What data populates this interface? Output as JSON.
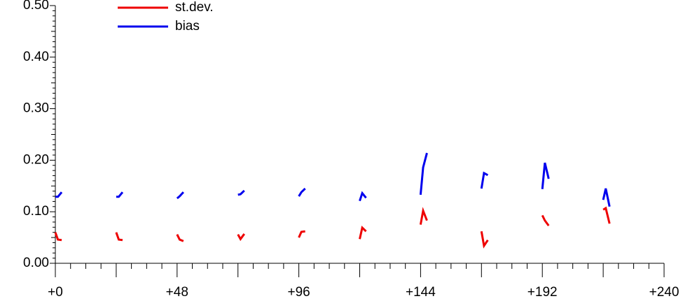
{
  "chart_data": {
    "type": "line",
    "x": [
      0,
      1,
      2.5,
      null,
      24,
      25,
      26.5,
      null,
      48,
      49,
      50.5,
      null,
      72,
      73,
      74.5,
      null,
      96,
      97,
      98.5,
      null,
      120,
      121,
      122.5,
      null,
      144,
      145,
      146.5,
      null,
      168,
      169,
      170.5,
      null,
      192,
      193,
      194.5,
      null,
      216,
      217,
      218.5
    ],
    "series": [
      {
        "name": "st.dev.",
        "color": "#ee0000",
        "values": [
          0.06,
          0.046,
          0.045,
          null,
          0.06,
          0.046,
          0.045,
          null,
          0.056,
          0.046,
          0.043,
          null,
          0.056,
          0.047,
          0.057,
          null,
          0.05,
          0.061,
          0.062,
          null,
          0.047,
          0.069,
          0.062,
          null,
          0.075,
          0.102,
          0.083,
          null,
          0.062,
          0.034,
          0.045,
          null,
          0.093,
          0.083,
          0.073,
          null,
          0.104,
          0.107,
          0.077
        ]
      },
      {
        "name": "bias",
        "color": "#0000ee",
        "values": [
          0.129,
          0.129,
          0.138,
          null,
          0.129,
          0.129,
          0.138,
          null,
          0.126,
          0.13,
          0.138,
          null,
          0.133,
          0.134,
          0.141,
          null,
          0.13,
          0.138,
          0.145,
          null,
          0.121,
          0.136,
          0.127,
          null,
          0.133,
          0.186,
          0.214,
          null,
          0.145,
          0.175,
          0.171,
          null,
          0.144,
          0.195,
          0.164,
          null,
          0.123,
          0.145,
          0.11
        ]
      }
    ],
    "xlim": [
      0,
      240
    ],
    "xticks": [
      {
        "value": 0,
        "label": "+0"
      },
      {
        "value": 48,
        "label": "+48"
      },
      {
        "value": 96,
        "label": "+96"
      },
      {
        "value": 144,
        "label": "+144"
      },
      {
        "value": 192,
        "label": "+192"
      },
      {
        "value": 240,
        "label": "+240"
      }
    ],
    "ylim": [
      0,
      0.5
    ],
    "yticks": [
      {
        "value": 0,
        "label": "0.00"
      },
      {
        "value": 0.1,
        "label": "0.10"
      },
      {
        "value": 0.2,
        "label": "0.20"
      },
      {
        "value": 0.3,
        "label": "0.30"
      },
      {
        "value": 0.4,
        "label": "0.40"
      },
      {
        "value": 0.5,
        "label": "0.50"
      }
    ],
    "grid": false,
    "legend": "top-left"
  }
}
